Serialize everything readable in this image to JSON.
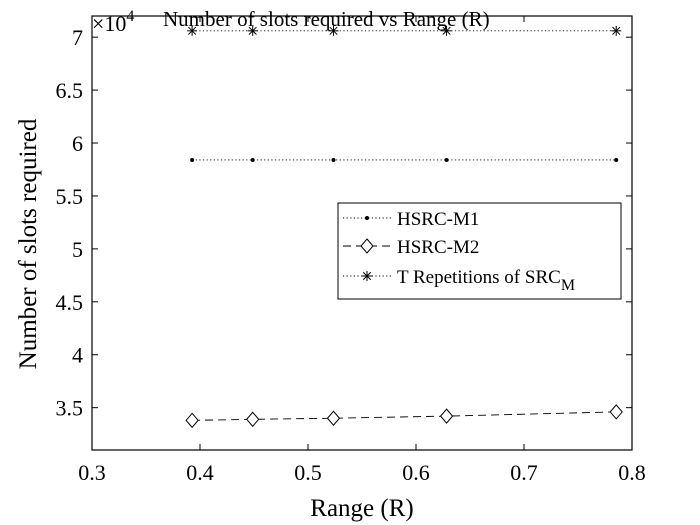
{
  "chart_data": {
    "type": "line",
    "title": "Number of slots required vs Range (R)",
    "xlabel": "Range (R)",
    "ylabel": "Number of slots required",
    "y_exponent_label": "×10",
    "y_exponent_power": "4",
    "xlim": [
      0.3,
      0.8
    ],
    "ylim": [
      3.1,
      7.2
    ],
    "xticks": [
      "0.3",
      "0.4",
      "0.5",
      "0.6",
      "0.7",
      "0.8"
    ],
    "xtick_values": [
      0.3,
      0.4,
      0.5,
      0.6,
      0.7,
      0.8
    ],
    "yticks": [
      "3.5",
      "4",
      "4.5",
      "5",
      "5.5",
      "6",
      "6.5",
      "7"
    ],
    "ytick_values": [
      3.5,
      4,
      4.5,
      5,
      5.5,
      6,
      6.5,
      7
    ],
    "grid": false,
    "legend_position": "right",
    "x": [
      0.3927,
      0.4488,
      0.5236,
      0.6283,
      0.7854
    ],
    "series": [
      {
        "name": "HSRC-M1",
        "values": [
          5.84,
          5.84,
          5.84,
          5.84,
          5.84
        ],
        "line_style": "dotted",
        "marker": "dot",
        "color": "#000000"
      },
      {
        "name": "HSRC-M2",
        "values": [
          3.38,
          3.39,
          3.4,
          3.42,
          3.46
        ],
        "line_style": "dashed",
        "marker": "diamond",
        "color": "#000000"
      },
      {
        "name": "T Repetitions of SRC",
        "name_subscript": "M",
        "values": [
          7.06,
          7.06,
          7.06,
          7.06,
          7.06
        ],
        "line_style": "dotted",
        "marker": "asterisk",
        "color": "#000000"
      }
    ]
  }
}
